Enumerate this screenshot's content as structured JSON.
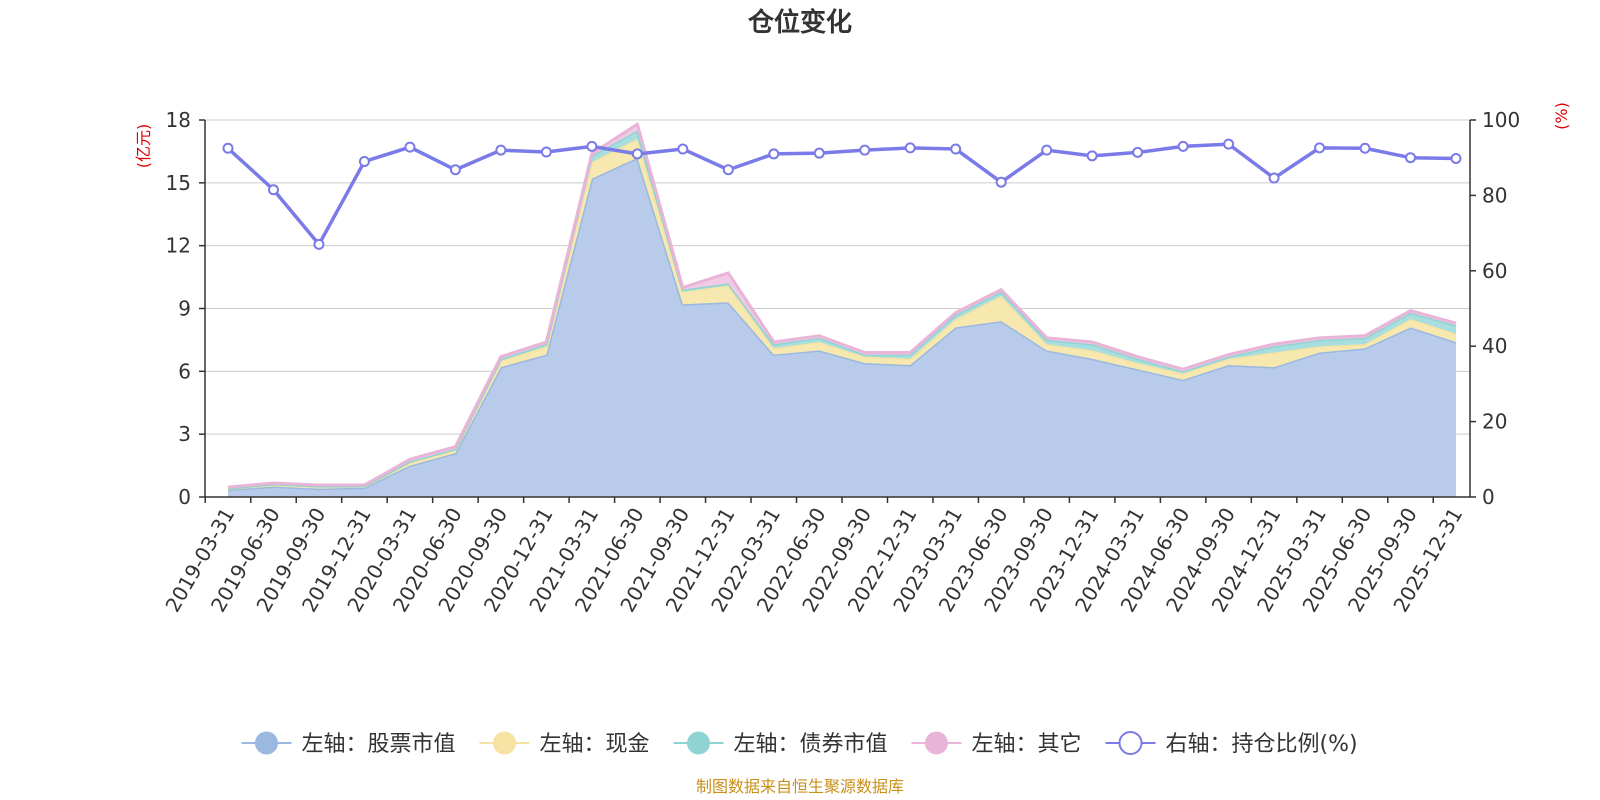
{
  "chart_data": {
    "type": "area",
    "title": "仓位变化",
    "left_axis": {
      "unit_label": "(亿元)",
      "ylim": [
        0,
        18
      ],
      "ticks": [
        0,
        3,
        6,
        9,
        12,
        15,
        18
      ]
    },
    "right_axis": {
      "unit_label": "(%)",
      "ylim": [
        0,
        100
      ],
      "ticks": [
        0,
        20,
        40,
        60,
        80,
        100
      ]
    },
    "categories": [
      "2019-03-31",
      "2019-06-30",
      "2019-09-30",
      "2019-12-31",
      "2020-03-31",
      "2020-06-30",
      "2020-09-30",
      "2020-12-31",
      "2021-03-31",
      "2021-06-30",
      "2021-09-30",
      "2021-12-31",
      "2022-03-31",
      "2022-06-30",
      "2022-09-30",
      "2022-12-31",
      "2023-03-31",
      "2023-06-30",
      "2023-09-30",
      "2023-12-31",
      "2024-03-31",
      "2024-06-30",
      "2024-09-30",
      "2024-12-31",
      "2025-03-31",
      "2025-06-30",
      "2025-09-30",
      "2025-12-31"
    ],
    "stacked_series": [
      {
        "name": "左轴：股票市值",
        "color": "#9bb8e0",
        "fill": "#b8cbea",
        "values": [
          0.35,
          0.5,
          0.4,
          0.45,
          1.5,
          2.1,
          6.2,
          6.8,
          15.2,
          16.2,
          9.2,
          9.3,
          6.8,
          7.0,
          6.4,
          6.3,
          8.1,
          8.4,
          7.0,
          6.6,
          6.1,
          5.6,
          6.3,
          6.2,
          6.9,
          7.1,
          8.1,
          7.4
        ]
      },
      {
        "name": "左轴：现金",
        "color": "#f6e3a3",
        "fill": "#f7e8b0",
        "values": [
          0.05,
          0.1,
          0.1,
          0.05,
          0.15,
          0.15,
          0.3,
          0.4,
          0.8,
          0.9,
          0.6,
          0.8,
          0.3,
          0.4,
          0.3,
          0.3,
          0.4,
          1.2,
          0.3,
          0.4,
          0.3,
          0.3,
          0.3,
          0.7,
          0.3,
          0.2,
          0.4,
          0.4
        ]
      },
      {
        "name": "左轴：债券市值",
        "color": "#8fd3d3",
        "fill": "#a8dede",
        "values": [
          0.02,
          0.02,
          0.02,
          0.02,
          0.05,
          0.05,
          0.1,
          0.1,
          0.3,
          0.4,
          0.1,
          0.1,
          0.2,
          0.2,
          0.1,
          0.2,
          0.2,
          0.2,
          0.2,
          0.3,
          0.2,
          0.1,
          0.1,
          0.3,
          0.3,
          0.3,
          0.3,
          0.4
        ]
      },
      {
        "name": "左轴：其它",
        "color": "#e8b4d8",
        "fill": "#f0cce4",
        "values": [
          0.05,
          0.05,
          0.05,
          0.05,
          0.1,
          0.1,
          0.1,
          0.1,
          0.1,
          0.3,
          0.1,
          0.5,
          0.1,
          0.1,
          0.1,
          0.1,
          0.1,
          0.1,
          0.1,
          0.1,
          0.1,
          0.1,
          0.1,
          0.1,
          0.1,
          0.1,
          0.1,
          0.1
        ]
      }
    ],
    "line_series": {
      "name": "右轴：持仓比例(%)",
      "color": "#7a7ae8",
      "axis": "right",
      "values": [
        92.5,
        81.5,
        67,
        89,
        92.8,
        86.8,
        92,
        91.5,
        93,
        91,
        92.3,
        86.8,
        91,
        91.2,
        92,
        92.6,
        92.3,
        83.5,
        92,
        90.5,
        91.4,
        93,
        93.6,
        84.6,
        92.6,
        92.5,
        90,
        89.8
      ]
    },
    "grid": true,
    "legend_position": "bottom"
  },
  "source_note": "制图数据来自恒生聚源数据库"
}
